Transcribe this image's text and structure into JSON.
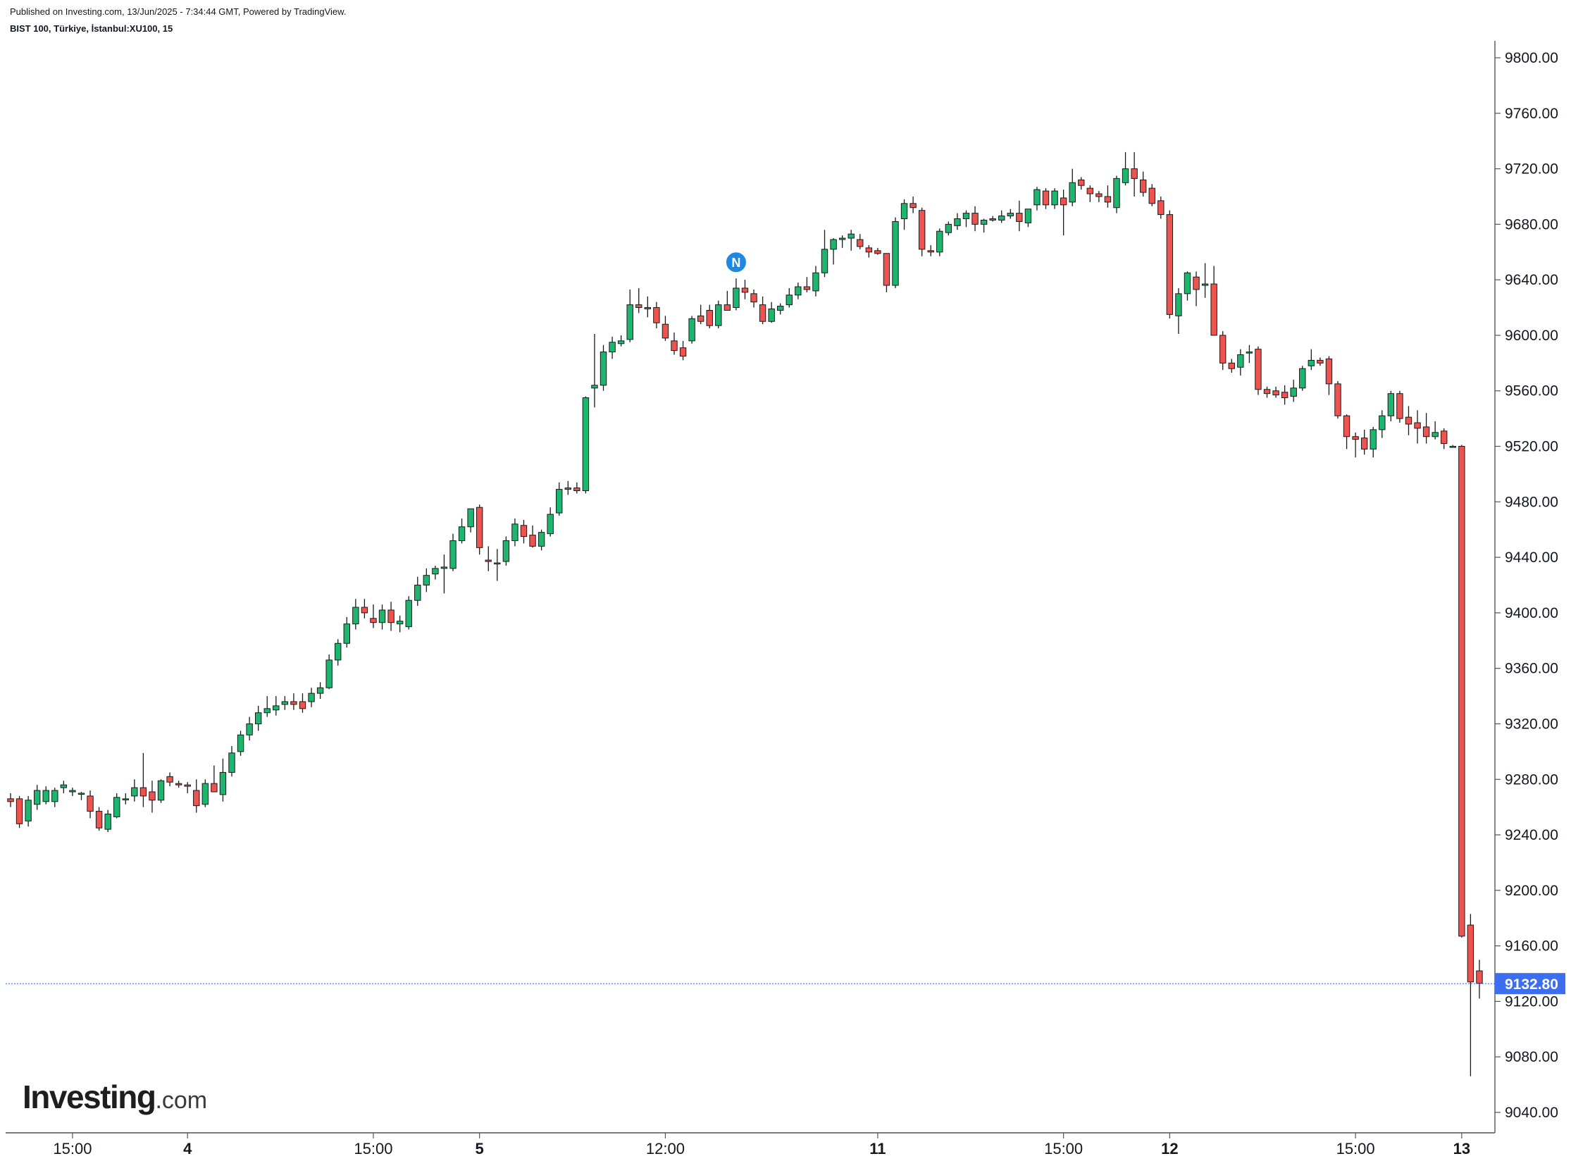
{
  "header": {
    "published": "Published on Investing.com, 13/Jun/2025 - 7:34:44 GMT, Powered by TradingView.",
    "symbol": "BIST 100, Türkiye, İstanbul:XU100, 15"
  },
  "logo": {
    "brand": "Investing",
    "suffix": ".com"
  },
  "colors": {
    "up": "#26a69a",
    "upFill": "#1db66f",
    "down": "#ef5350",
    "wick": "#1a1a1a",
    "priceLine": "#2962ff",
    "priceLabel": "#3d6ef0"
  },
  "news_marker": {
    "label": "N",
    "bar_index": 82,
    "color": "#1e88e5"
  },
  "chart_data": {
    "type": "candlestick",
    "title": "",
    "xlabel": "",
    "ylabel": "",
    "ylim": [
      9030,
      9808
    ],
    "y_ticks": [
      9800.0,
      9760.0,
      9720.0,
      9680.0,
      9640.0,
      9600.0,
      9560.0,
      9520.0,
      9480.0,
      9440.0,
      9400.0,
      9360.0,
      9320.0,
      9280.0,
      9240.0,
      9200.0,
      9160.0,
      9120.0,
      9080.0,
      9040.0
    ],
    "y_tick_labels": [
      "9800.00",
      "9760.00",
      "9720.00",
      "9680.00",
      "9640.00",
      "9600.00",
      "9560.00",
      "9520.00",
      "9480.00",
      "9440.00",
      "9400.00",
      "9360.00",
      "9320.00",
      "9280.00",
      "9240.00",
      "9200.00",
      "9160.00",
      "9120.00",
      "9080.00",
      "9040.00"
    ],
    "x_ticks": [
      {
        "label": "15:00",
        "bar_index": 7
      },
      {
        "label": "4",
        "bar_index": 20,
        "bold": true
      },
      {
        "label": "15:00",
        "bar_index": 41
      },
      {
        "label": "5",
        "bar_index": 53,
        "bold": true
      },
      {
        "label": "12:00",
        "bar_index": 74
      },
      {
        "label": "11",
        "bar_index": 98,
        "bold": true
      },
      {
        "label": "15:00",
        "bar_index": 119
      },
      {
        "label": "12",
        "bar_index": 131,
        "bold": true
      },
      {
        "label": "15:00",
        "bar_index": 152
      },
      {
        "label": "13",
        "bar_index": 164,
        "bold": true
      }
    ],
    "last_price": 9132.8,
    "last_price_label": "9132.80",
    "candles": [
      [
        9266,
        9270,
        9260,
        9264
      ],
      [
        9266,
        9268,
        9245,
        9248
      ],
      [
        9250,
        9268,
        9246,
        9265
      ],
      [
        9262,
        9276,
        9258,
        9272
      ],
      [
        9264,
        9275,
        9262,
        9272
      ],
      [
        9264,
        9274,
        9260,
        9272
      ],
      [
        9274,
        9279,
        9270,
        9276
      ],
      [
        9271,
        9274,
        9268,
        9272
      ],
      [
        9270,
        9271,
        9265,
        9270
      ],
      [
        9268,
        9272,
        9252,
        9257
      ],
      [
        9257,
        9260,
        9243,
        9245
      ],
      [
        9244,
        9258,
        9242,
        9255
      ],
      [
        9253,
        9270,
        9252,
        9267
      ],
      [
        9266,
        9270,
        9262,
        9266
      ],
      [
        9268,
        9280,
        9264,
        9274
      ],
      [
        9274,
        9299,
        9260,
        9268
      ],
      [
        9271,
        9279,
        9256,
        9265
      ],
      [
        9265,
        9280,
        9263,
        9279
      ],
      [
        9282,
        9285,
        9275,
        9278
      ],
      [
        9277,
        9279,
        9274,
        9276
      ],
      [
        9276,
        9278,
        9270,
        9275
      ],
      [
        9272,
        9280,
        9256,
        9261
      ],
      [
        9262,
        9280,
        9260,
        9277
      ],
      [
        9277,
        9290,
        9272,
        9271
      ],
      [
        9269,
        9295,
        9264,
        9285
      ],
      [
        9285,
        9304,
        9282,
        9299
      ],
      [
        9300,
        9315,
        9297,
        9312
      ],
      [
        9312,
        9325,
        9308,
        9320
      ],
      [
        9320,
        9333,
        9315,
        9328
      ],
      [
        9328,
        9340,
        9325,
        9331
      ],
      [
        9330,
        9340,
        9326,
        9333
      ],
      [
        9334,
        9340,
        9330,
        9336
      ],
      [
        9336,
        9342,
        9330,
        9334
      ],
      [
        9336,
        9342,
        9328,
        9331
      ],
      [
        9336,
        9346,
        9332,
        9342
      ],
      [
        9342,
        9350,
        9338,
        9346
      ],
      [
        9346,
        9370,
        9345,
        9366
      ],
      [
        9366,
        9381,
        9362,
        9378
      ],
      [
        9378,
        9397,
        9375,
        9392
      ],
      [
        9392,
        9410,
        9388,
        9404
      ],
      [
        9404,
        9410,
        9396,
        9400
      ],
      [
        9396,
        9406,
        9389,
        9393
      ],
      [
        9393,
        9406,
        9388,
        9402
      ],
      [
        9402,
        9408,
        9387,
        9393
      ],
      [
        9392,
        9398,
        9386,
        9394
      ],
      [
        9390,
        9412,
        9388,
        9409
      ],
      [
        9409,
        9426,
        9405,
        9420
      ],
      [
        9420,
        9432,
        9415,
        9427
      ],
      [
        9428,
        9434,
        9424,
        9432
      ],
      [
        9432,
        9442,
        9414,
        9433
      ],
      [
        9432,
        9457,
        9430,
        9452
      ],
      [
        9452,
        9468,
        9450,
        9462
      ],
      [
        9462,
        9475,
        9458,
        9475
      ],
      [
        9476,
        9478,
        9442,
        9447
      ],
      [
        9438,
        9448,
        9430,
        9437
      ],
      [
        9436,
        9446,
        9423,
        9436
      ],
      [
        9437,
        9455,
        9434,
        9452
      ],
      [
        9452,
        9468,
        9448,
        9464
      ],
      [
        9463,
        9467,
        9450,
        9455
      ],
      [
        9456,
        9463,
        9447,
        9448
      ],
      [
        9448,
        9460,
        9445,
        9458
      ],
      [
        9457,
        9476,
        9455,
        9471
      ],
      [
        9472,
        9494,
        9470,
        9489
      ],
      [
        9489,
        9495,
        9485,
        9490
      ],
      [
        9490,
        9494,
        9486,
        9488
      ],
      [
        9488,
        9556,
        9486,
        9555
      ],
      [
        9562,
        9601,
        9548,
        9564
      ],
      [
        9564,
        9593,
        9560,
        9588
      ],
      [
        9588,
        9599,
        9583,
        9595
      ],
      [
        9594,
        9600,
        9592,
        9596
      ],
      [
        9597,
        9633,
        9595,
        9622
      ],
      [
        9622,
        9634,
        9616,
        9620
      ],
      [
        9620,
        9628,
        9613,
        9619
      ],
      [
        9620,
        9624,
        9605,
        9609
      ],
      [
        9608,
        9614,
        9596,
        9598
      ],
      [
        9596,
        9602,
        9586,
        9589
      ],
      [
        9591,
        9596,
        9582,
        9585
      ],
      [
        9596,
        9614,
        9594,
        9612
      ],
      [
        9614,
        9622,
        9608,
        9610
      ],
      [
        9618,
        9622,
        9605,
        9607
      ],
      [
        9607,
        9625,
        9605,
        9622
      ],
      [
        9622,
        9632,
        9618,
        9618
      ],
      [
        9620,
        9641,
        9618,
        9634
      ],
      [
        9634,
        9640,
        9626,
        9631
      ],
      [
        9630,
        9633,
        9620,
        9624
      ],
      [
        9622,
        9628,
        9608,
        9610
      ],
      [
        9610,
        9624,
        9609,
        9619
      ],
      [
        9618,
        9623,
        9615,
        9621
      ],
      [
        9622,
        9634,
        9620,
        9629
      ],
      [
        9629,
        9638,
        9626,
        9635
      ],
      [
        9635,
        9642,
        9631,
        9633
      ],
      [
        9632,
        9650,
        9628,
        9645
      ],
      [
        9645,
        9676,
        9642,
        9662
      ],
      [
        9662,
        9670,
        9651,
        9669
      ],
      [
        9669,
        9672,
        9663,
        9670
      ],
      [
        9670,
        9676,
        9661,
        9673
      ],
      [
        9669,
        9673,
        9662,
        9664
      ],
      [
        9663,
        9665,
        9656,
        9660
      ],
      [
        9661,
        9663,
        9658,
        9659
      ],
      [
        9659,
        9657,
        9631,
        9636
      ],
      [
        9636,
        9685,
        9634,
        9682
      ],
      [
        9684,
        9698,
        9676,
        9695
      ],
      [
        9695,
        9700,
        9688,
        9692
      ],
      [
        9690,
        9692,
        9657,
        9662
      ],
      [
        9661,
        9665,
        9657,
        9660
      ],
      [
        9660,
        9677,
        9657,
        9675
      ],
      [
        9674,
        9682,
        9672,
        9680
      ],
      [
        9679,
        9688,
        9676,
        9684
      ],
      [
        9684,
        9690,
        9678,
        9688
      ],
      [
        9688,
        9693,
        9675,
        9680
      ],
      [
        9680,
        9684,
        9674,
        9683
      ],
      [
        9684,
        9686,
        9682,
        9683
      ],
      [
        9683,
        9690,
        9681,
        9686
      ],
      [
        9686,
        9691,
        9684,
        9688
      ],
      [
        9688,
        9697,
        9675,
        9682
      ],
      [
        9681,
        9688,
        9678,
        9691
      ],
      [
        9694,
        9707,
        9690,
        9705
      ],
      [
        9704,
        9706,
        9691,
        9694
      ],
      [
        9694,
        9706,
        9691,
        9704
      ],
      [
        9699,
        9705,
        9672,
        9694
      ],
      [
        9696,
        9720,
        9693,
        9710
      ],
      [
        9712,
        9714,
        9705,
        9708
      ],
      [
        9706,
        9708,
        9696,
        9702
      ],
      [
        9702,
        9704,
        9696,
        9700
      ],
      [
        9700,
        9708,
        9692,
        9696
      ],
      [
        9692,
        9715,
        9688,
        9713
      ],
      [
        9710,
        9732,
        9708,
        9720
      ],
      [
        9720,
        9732,
        9700,
        9713
      ],
      [
        9712,
        9718,
        9700,
        9703
      ],
      [
        9706,
        9709,
        9693,
        9695
      ],
      [
        9697,
        9700,
        9684,
        9687
      ],
      [
        9687,
        9690,
        9612,
        9615
      ],
      [
        9614,
        9634,
        9601,
        9630
      ],
      [
        9630,
        9646,
        9625,
        9645
      ],
      [
        9642,
        9646,
        9621,
        9633
      ],
      [
        9636,
        9652,
        9627,
        9637
      ],
      [
        9637,
        9650,
        9600,
        9600
      ],
      [
        9600,
        9603,
        9575,
        9580
      ],
      [
        9580,
        9583,
        9573,
        9576
      ],
      [
        9577,
        9590,
        9571,
        9586
      ],
      [
        9588,
        9593,
        9580,
        9588
      ],
      [
        9590,
        9592,
        9557,
        9561
      ],
      [
        9561,
        9563,
        9555,
        9558
      ],
      [
        9560,
        9563,
        9555,
        9557
      ],
      [
        9559,
        9564,
        9550,
        9555
      ],
      [
        9556,
        9568,
        9552,
        9562
      ],
      [
        9562,
        9578,
        9560,
        9576
      ],
      [
        9578,
        9590,
        9575,
        9582
      ],
      [
        9582,
        9584,
        9578,
        9580
      ],
      [
        9583,
        9585,
        9557,
        9565
      ],
      [
        9565,
        9567,
        9540,
        9542
      ],
      [
        9542,
        9543,
        9518,
        9527
      ],
      [
        9527,
        9530,
        9512,
        9525
      ],
      [
        9526,
        9532,
        9514,
        9518
      ],
      [
        9518,
        9534,
        9512,
        9532
      ],
      [
        9532,
        9546,
        9526,
        9542
      ],
      [
        9542,
        9560,
        9538,
        9558
      ],
      [
        9558,
        9560,
        9537,
        9540
      ],
      [
        9541,
        9549,
        9528,
        9536
      ],
      [
        9537,
        9546,
        9522,
        9533
      ],
      [
        9534,
        9544,
        9522,
        9527
      ],
      [
        9527,
        9538,
        9525,
        9530
      ],
      [
        9531,
        9533,
        9518,
        9522
      ],
      [
        9520,
        9521,
        9519,
        9520
      ],
      [
        9520,
        9521,
        9166,
        9167
      ],
      [
        9175,
        9183,
        9066,
        9134
      ],
      [
        9142,
        9150,
        9122,
        9133
      ]
    ]
  }
}
